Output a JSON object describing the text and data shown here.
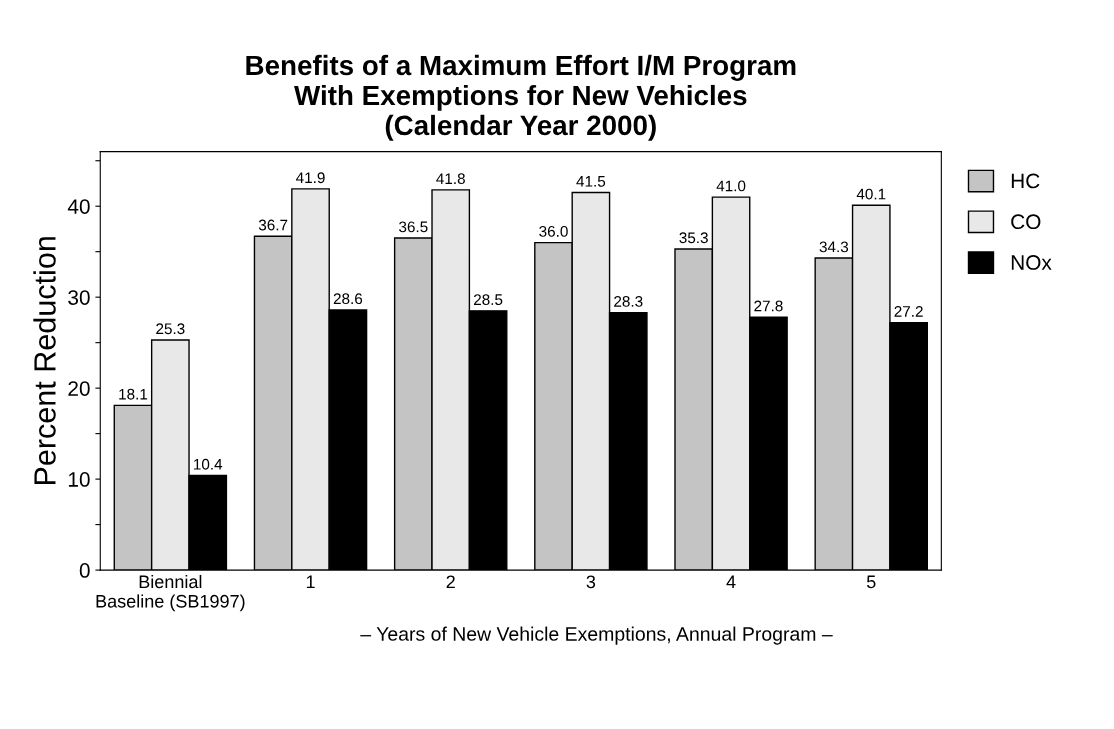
{
  "chart_data": {
    "type": "bar",
    "title": "Benefits of a Maximum Effort I/M Program\nWith Exemptions for New Vehicles\n(Calendar Year 2000)",
    "ylabel": "Percent Reduction",
    "xlabel": "– Years of New Vehicle Exemptions, Annual Program –",
    "categories": [
      "Biennial\nBaseline (SB1997)",
      "1",
      "2",
      "3",
      "4",
      "5"
    ],
    "series": [
      {
        "name": "HC",
        "color": "#c4c4c4",
        "values": [
          18.1,
          36.7,
          36.5,
          36.0,
          35.3,
          34.3
        ],
        "value_labels": [
          "18.1",
          "36.7",
          "36.5",
          "36.0",
          "35.3",
          "34.3"
        ]
      },
      {
        "name": "CO",
        "color": "#e8e8e8",
        "values": [
          25.3,
          41.9,
          41.8,
          41.5,
          41.0,
          40.1
        ],
        "value_labels": [
          "25.3",
          "41.9",
          "41.8",
          "41.5",
          "41.0",
          "40.1"
        ]
      },
      {
        "name": "NOx",
        "color": "#000000",
        "values": [
          10.4,
          28.6,
          28.5,
          28.3,
          27.8,
          27.2
        ],
        "value_labels": [
          "10.4",
          "28.6",
          "28.5",
          "28.3",
          "27.8",
          "27.2"
        ]
      }
    ],
    "ylim": [
      0,
      46
    ],
    "yticks": [
      0,
      {
        "value": 5,
        "label": null
      },
      10,
      {
        "value": 15,
        "label": null
      },
      20,
      {
        "value": 25,
        "label": null
      },
      30,
      {
        "value": 35,
        "label": null
      },
      40,
      {
        "value": 45,
        "label": null
      }
    ],
    "grid": false,
    "legend": "top right"
  }
}
